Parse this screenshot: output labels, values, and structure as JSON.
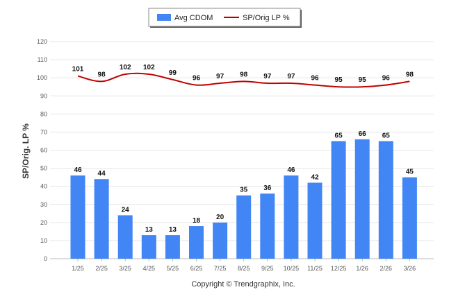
{
  "chart_data": {
    "type": "bar",
    "categories": [
      "1/25",
      "2/25",
      "3/25",
      "4/25",
      "5/25",
      "6/25",
      "7/25",
      "8/25",
      "9/25",
      "10/25",
      "11/25",
      "12/25",
      "1/26",
      "2/26",
      "3/26"
    ],
    "series": [
      {
        "name": "Avg CDOM",
        "kind": "bar",
        "color": "#4285f4",
        "values": [
          46,
          44,
          24,
          13,
          13,
          18,
          20,
          35,
          36,
          46,
          42,
          65,
          66,
          65,
          45
        ]
      },
      {
        "name": "SP/Orig LP %",
        "kind": "line",
        "color": "#c00000",
        "values": [
          101,
          98,
          102,
          102,
          99,
          96,
          97,
          98,
          97,
          97,
          96,
          95,
          95,
          96,
          98
        ]
      }
    ],
    "ylabel": "SP/Orig. LP %",
    "ylim": [
      0,
      120
    ],
    "yticks": [
      0,
      10,
      20,
      30,
      40,
      50,
      60,
      70,
      80,
      90,
      100,
      110,
      120
    ],
    "grid": true,
    "legend": "top-center"
  },
  "footer": {
    "copyright": "Copyright © Trendgraphix, Inc."
  }
}
